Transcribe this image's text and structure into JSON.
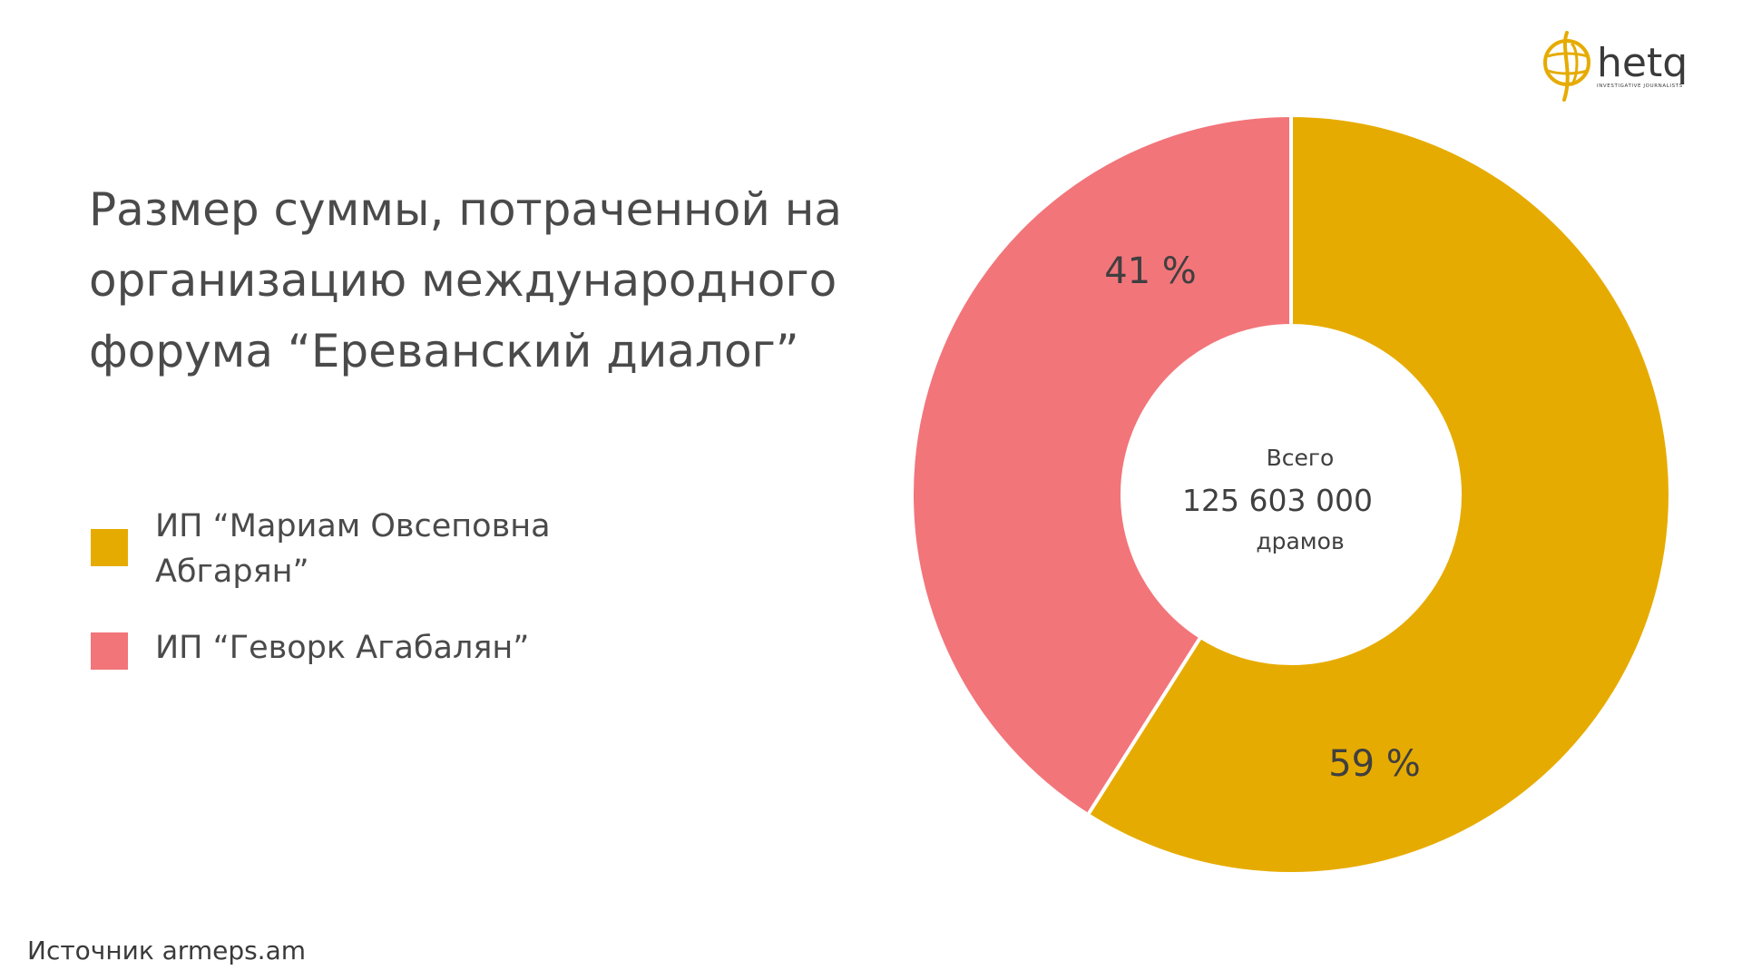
{
  "chart_data": {
    "type": "pie",
    "variant": "donut",
    "title": "Размер суммы, потраченной на организацию международного форума “Ереванский диалог”",
    "categories": [
      "ИП “Мариам Овсеповна Абгарян”",
      "ИП “Геворк Агабалян”"
    ],
    "values": [
      59,
      41
    ],
    "unit": "%",
    "data_labels": [
      "59 %",
      "41 %"
    ],
    "colors": [
      "#E6AB00",
      "#F2757A"
    ],
    "center_label": {
      "line1": "Всего",
      "line2": "125 603 000",
      "line3": "драмов"
    },
    "legend": {
      "placement": "left",
      "entries": [
        {
          "lines": [
            "ИП “Мариам Овсеповна",
            "Абгарян”"
          ],
          "color": "#E6AB00"
        },
        {
          "lines": [
            "ИП “Геворк Агабалян”"
          ],
          "color": "#F2757A"
        }
      ]
    }
  },
  "source": "Источник armeps.am",
  "logo": {
    "text": "hetq",
    "tagline": "INVESTIGATIVE JOURNALISTS",
    "icon": "globe-hand-icon",
    "color": "#E6AB00"
  }
}
